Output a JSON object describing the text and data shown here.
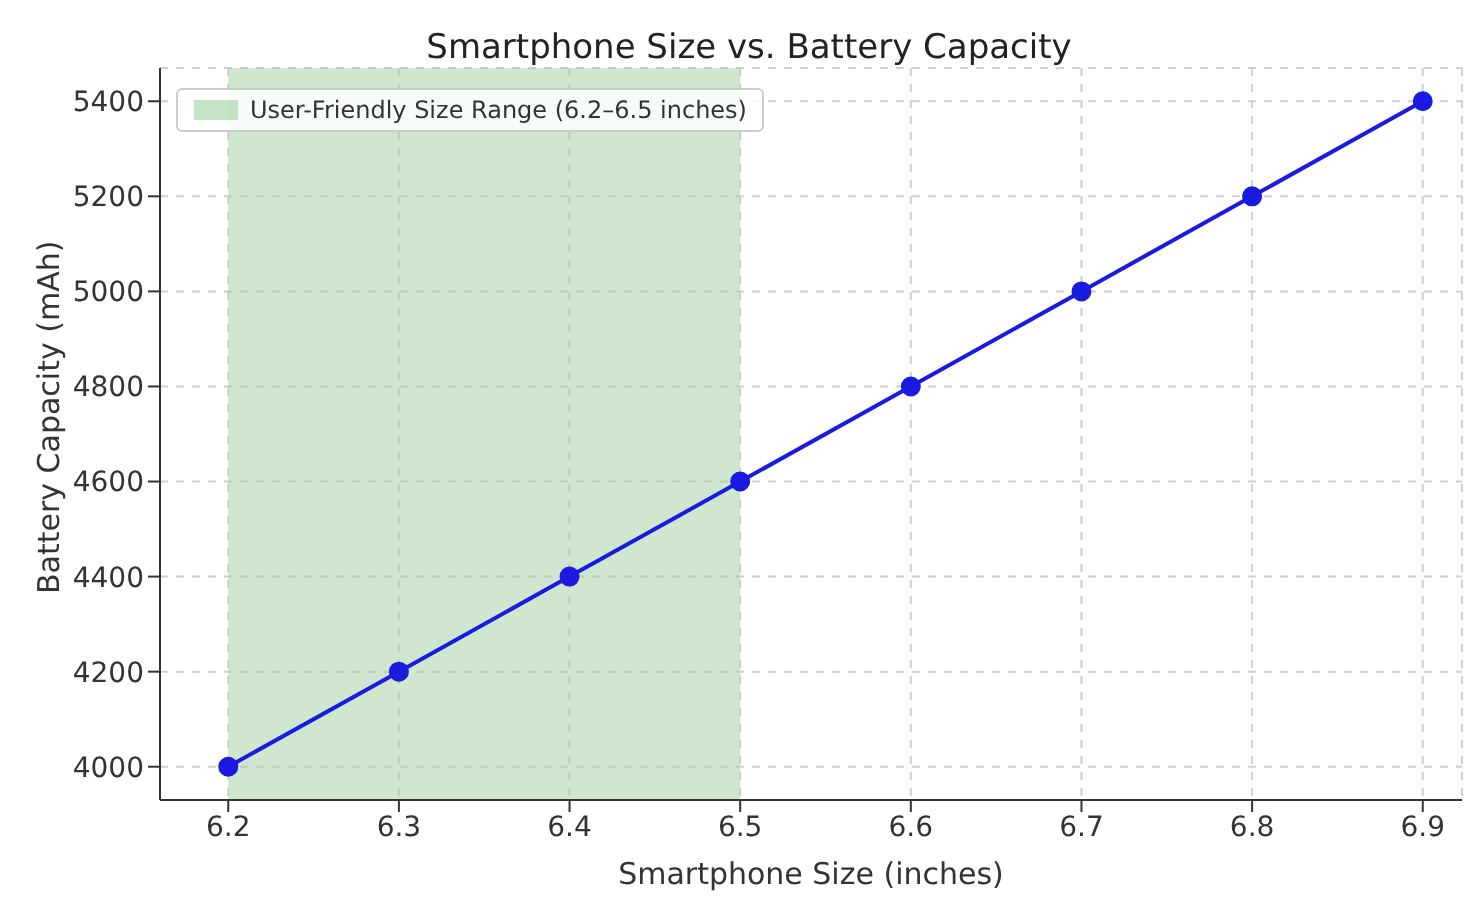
{
  "chart_data": {
    "type": "line",
    "title": "Smartphone Size vs. Battery Capacity",
    "xlabel": "Smartphone Size (inches)",
    "ylabel": "Battery Capacity (mAh)",
    "x": [
      6.2,
      6.3,
      6.4,
      6.5,
      6.6,
      6.7,
      6.8,
      6.9
    ],
    "series": [
      {
        "color": "#1a1ae0",
        "values": [
          4000,
          4200,
          4400,
          4600,
          4800,
          5000,
          5200,
          5400
        ]
      }
    ],
    "xlim": [
      6.16,
      6.923
    ],
    "xticks": [
      6.2,
      6.3,
      6.4,
      6.5,
      6.6,
      6.7,
      6.8,
      6.9
    ],
    "ylim": [
      3930,
      5470
    ],
    "yticks": [
      4000,
      4200,
      4400,
      4600,
      4800,
      5000,
      5200,
      5400
    ],
    "bands": [
      {
        "axis": "x",
        "from": 6.2,
        "to": 6.5,
        "label": "User-Friendly Size Range (6.2–6.5 inches)",
        "color": "#9fd09f"
      }
    ],
    "grid": true,
    "legend": "top left",
    "marker": "circle",
    "line_style": "solid"
  }
}
